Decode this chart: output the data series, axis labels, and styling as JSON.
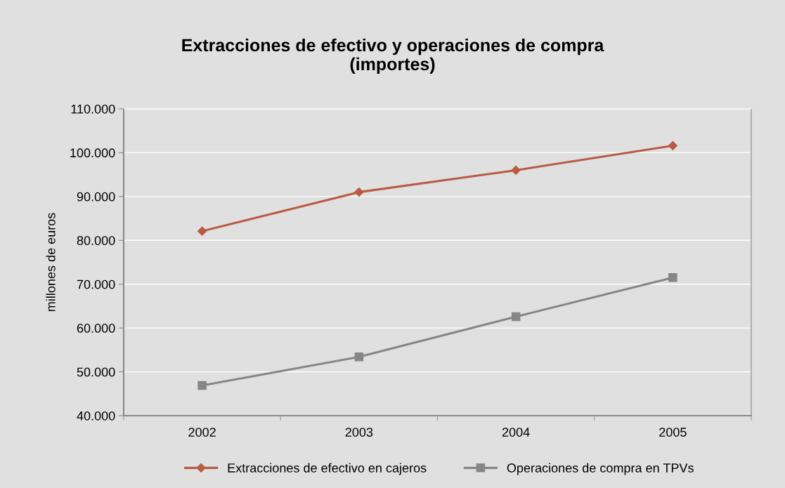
{
  "chart_data": {
    "type": "line",
    "title": "Extracciones de efectivo y operaciones de compra\n(importes)",
    "ylabel": "millones de euros",
    "categories": [
      "2002",
      "2003",
      "2004",
      "2005"
    ],
    "series": [
      {
        "name": "Extracciones de efectivo en cajeros",
        "color": "#b85c44",
        "marker": "diamond",
        "values": [
          82100,
          91000,
          96000,
          101600
        ]
      },
      {
        "name": "Operaciones de compra en TPVs",
        "color": "#868686",
        "marker": "square",
        "values": [
          46900,
          53400,
          62600,
          71500
        ]
      }
    ],
    "ylim": [
      40000,
      110000
    ],
    "yticks": [
      {
        "value": 40000,
        "label": "40.000"
      },
      {
        "value": 50000,
        "label": "50.000"
      },
      {
        "value": 60000,
        "label": "60.000"
      },
      {
        "value": 70000,
        "label": "70.000"
      },
      {
        "value": 80000,
        "label": "80.000"
      },
      {
        "value": 90000,
        "label": "90.000"
      },
      {
        "value": 100000,
        "label": "100.000"
      },
      {
        "value": 110000,
        "label": "110.000"
      }
    ],
    "grid": "y",
    "legend": "bottom",
    "line_style": "solid"
  }
}
